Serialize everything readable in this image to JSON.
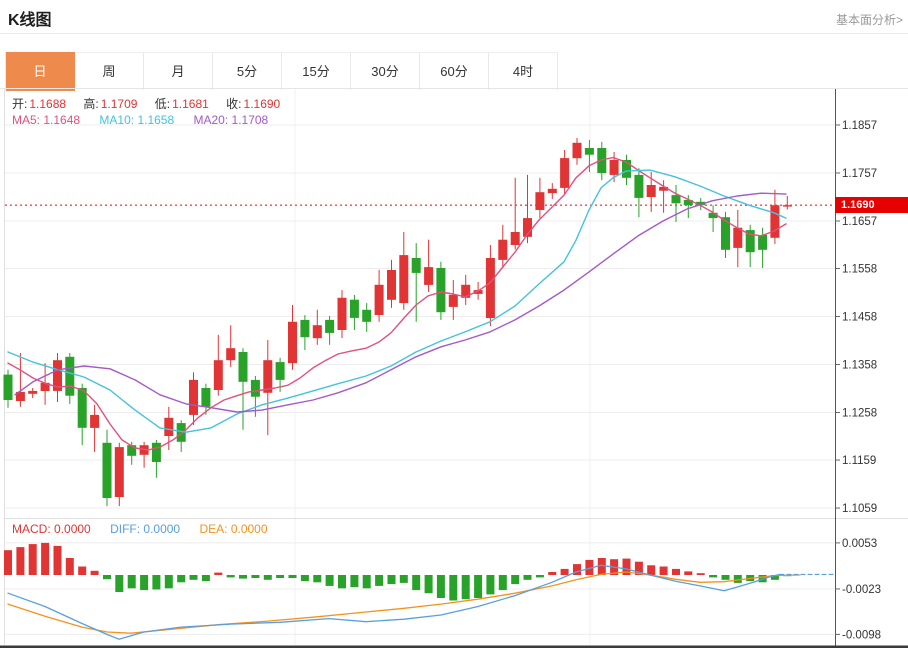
{
  "header": {
    "title": "K线图",
    "link": "基本面分析>"
  },
  "tabs": [
    "日",
    "周",
    "月",
    "5分",
    "15分",
    "30分",
    "60分",
    "4时"
  ],
  "ohlc": [
    {
      "label": "开:",
      "value": "1.1688"
    },
    {
      "label": "高:",
      "value": "1.1709"
    },
    {
      "label": "低:",
      "value": "1.1681"
    },
    {
      "label": "收:",
      "value": "1.1690"
    }
  ],
  "ma_legend": [
    {
      "label": "MA5:",
      "value": "1.1648"
    },
    {
      "label": "MA10:",
      "value": "1.1658"
    },
    {
      "label": "MA20:",
      "value": "1.1708"
    }
  ],
  "macd_legend": [
    {
      "label": "MACD:",
      "value": "0.0000"
    },
    {
      "label": "DIFF:",
      "value": "0.0000"
    },
    {
      "label": "DEA:",
      "value": "0.0000"
    }
  ],
  "price_tag": "1.1690",
  "chart_data": {
    "type": "candlestick",
    "title": "K线图",
    "up_color": "#e13434",
    "down_color": "#28a228",
    "price_line_color": "#f04848",
    "tag_color": "#e60000",
    "current_price": 1.169,
    "y_axis_labels": [
      "1.1857",
      "1.1757",
      "1.1657",
      "1.1558",
      "1.1458",
      "1.1358",
      "1.1258",
      "1.1159",
      "1.1059"
    ],
    "macd_axis_labels": [
      "0.0053",
      "-0.0023",
      "-0.0098"
    ],
    "candles": [
      [
        1.1337,
        1.1347,
        1.1268,
        1.1284
      ],
      [
        1.1282,
        1.1382,
        1.127,
        1.1301
      ],
      [
        1.1297,
        1.1309,
        1.1288,
        1.1303
      ],
      [
        1.1303,
        1.1361,
        1.1274,
        1.132
      ],
      [
        1.1303,
        1.1382,
        1.128,
        1.1367
      ],
      [
        1.1374,
        1.1382,
        1.1276,
        1.1293
      ],
      [
        1.1309,
        1.1318,
        1.119,
        1.1226
      ],
      [
        1.1226,
        1.1274,
        1.1176,
        1.1253
      ],
      [
        1.1195,
        1.1222,
        1.1063,
        1.108
      ],
      [
        1.1082,
        1.1195,
        1.1063,
        1.1186
      ],
      [
        1.119,
        1.1197,
        1.1149,
        1.1168
      ],
      [
        1.117,
        1.1197,
        1.1143,
        1.119
      ],
      [
        1.1195,
        1.1201,
        1.1122,
        1.1155
      ],
      [
        1.1209,
        1.127,
        1.118,
        1.1247
      ],
      [
        1.1236,
        1.1242,
        1.1176,
        1.1197
      ],
      [
        1.1253,
        1.1342,
        1.1232,
        1.1326
      ],
      [
        1.1309,
        1.1318,
        1.1253,
        1.127
      ],
      [
        1.1305,
        1.142,
        1.1293,
        1.1367
      ],
      [
        1.1367,
        1.144,
        1.1353,
        1.1392
      ],
      [
        1.1384,
        1.1392,
        1.1222,
        1.1322
      ],
      [
        1.1326,
        1.1334,
        1.1249,
        1.1291
      ],
      [
        1.1299,
        1.1409,
        1.1211,
        1.1367
      ],
      [
        1.1363,
        1.1372,
        1.1301,
        1.1326
      ],
      [
        1.1361,
        1.1482,
        1.1347,
        1.1447
      ],
      [
        1.1451,
        1.1461,
        1.1388,
        1.1415
      ],
      [
        1.1413,
        1.1472,
        1.1399,
        1.144
      ],
      [
        1.1451,
        1.1459,
        1.1399,
        1.1424
      ],
      [
        1.143,
        1.1513,
        1.1413,
        1.1497
      ],
      [
        1.1493,
        1.1503,
        1.143,
        1.1455
      ],
      [
        1.1472,
        1.1486,
        1.1426,
        1.1447
      ],
      [
        1.1461,
        1.1555,
        1.1447,
        1.1524
      ],
      [
        1.1493,
        1.1576,
        1.1476,
        1.1555
      ],
      [
        1.1486,
        1.1634,
        1.1472,
        1.1586
      ],
      [
        1.158,
        1.1611,
        1.1447,
        1.1549
      ],
      [
        1.1524,
        1.1618,
        1.1509,
        1.1561
      ],
      [
        1.1559,
        1.1572,
        1.1451,
        1.1467
      ],
      [
        1.1478,
        1.1534,
        1.1451,
        1.1503
      ],
      [
        1.1497,
        1.1545,
        1.1482,
        1.1524
      ],
      [
        1.1505,
        1.153,
        1.1493,
        1.1513
      ],
      [
        1.1455,
        1.1607,
        1.1438,
        1.158
      ],
      [
        1.1576,
        1.1649,
        1.1559,
        1.1618
      ],
      [
        1.1607,
        1.1747,
        1.1598,
        1.1634
      ],
      [
        1.1624,
        1.1753,
        1.1611,
        1.1663
      ],
      [
        1.168,
        1.1747,
        1.1663,
        1.1717
      ],
      [
        1.1715,
        1.1736,
        1.1703,
        1.1724
      ],
      [
        1.1726,
        1.1805,
        1.1711,
        1.1788
      ],
      [
        1.1788,
        1.183,
        1.1774,
        1.182
      ],
      [
        1.1809,
        1.1826,
        1.1759,
        1.1795
      ],
      [
        1.1809,
        1.1822,
        1.1742,
        1.1757
      ],
      [
        1.1753,
        1.1801,
        1.1738,
        1.1784
      ],
      [
        1.1784,
        1.1795,
        1.1732,
        1.1747
      ],
      [
        1.1753,
        1.1767,
        1.1665,
        1.1705
      ],
      [
        1.1707,
        1.1759,
        1.1676,
        1.1732
      ],
      [
        1.172,
        1.1742,
        1.1674,
        1.1728
      ],
      [
        1.1711,
        1.1732,
        1.1655,
        1.1694
      ],
      [
        1.1701,
        1.1711,
        1.1663,
        1.169
      ],
      [
        1.1697,
        1.1705,
        1.168,
        1.169
      ],
      [
        1.1674,
        1.169,
        1.1634,
        1.1663
      ],
      [
        1.1665,
        1.1676,
        1.158,
        1.1597
      ],
      [
        1.1601,
        1.168,
        1.1561,
        1.1643
      ],
      [
        1.1638,
        1.1649,
        1.1561,
        1.1592
      ],
      [
        1.1628,
        1.1643,
        1.1559,
        1.1597
      ],
      [
        1.1622,
        1.1722,
        1.1609,
        1.169
      ],
      [
        1.1688,
        1.1709,
        1.1681,
        1.169
      ]
    ],
    "ma_lines": [
      {
        "name": "MA5",
        "color": "#e0517e",
        "points": [
          [
            8,
            1.1361
          ],
          [
            20,
            1.1347
          ],
          [
            33,
            1.133
          ],
          [
            46,
            1.1318
          ],
          [
            58,
            1.1311
          ],
          [
            71,
            1.1313
          ],
          [
            84,
            1.1303
          ],
          [
            97,
            1.1276
          ],
          [
            110,
            1.1234
          ],
          [
            122,
            1.1201
          ],
          [
            135,
            1.1184
          ],
          [
            148,
            1.118
          ],
          [
            160,
            1.1186
          ],
          [
            173,
            1.1201
          ],
          [
            186,
            1.1222
          ],
          [
            198,
            1.1247
          ],
          [
            211,
            1.1268
          ],
          [
            224,
            1.1284
          ],
          [
            237,
            1.1293
          ],
          [
            249,
            1.1301
          ],
          [
            262,
            1.1305
          ],
          [
            275,
            1.1309
          ],
          [
            288,
            1.1315
          ],
          [
            300,
            1.133
          ],
          [
            313,
            1.1351
          ],
          [
            326,
            1.1367
          ],
          [
            338,
            1.138
          ],
          [
            351,
            1.1386
          ],
          [
            366,
            1.1392
          ],
          [
            379,
            1.1405
          ],
          [
            391,
            1.1424
          ],
          [
            404,
            1.1455
          ],
          [
            416,
            1.1482
          ],
          [
            428,
            1.1501
          ],
          [
            441,
            1.1509
          ],
          [
            453,
            1.1505
          ],
          [
            465,
            1.1499
          ],
          [
            478,
            1.1511
          ],
          [
            490,
            1.1528
          ],
          [
            502,
            1.1559
          ],
          [
            515,
            1.1592
          ],
          [
            527,
            1.1628
          ],
          [
            539,
            1.1659
          ],
          [
            552,
            1.1686
          ],
          [
            564,
            1.1711
          ],
          [
            576,
            1.1747
          ],
          [
            589,
            1.1772
          ],
          [
            601,
            1.1784
          ],
          [
            613,
            1.1789
          ],
          [
            626,
            1.178
          ],
          [
            638,
            1.1763
          ],
          [
            650,
            1.1747
          ],
          [
            663,
            1.173
          ],
          [
            675,
            1.1715
          ],
          [
            687,
            1.1703
          ],
          [
            700,
            1.169
          ],
          [
            712,
            1.1676
          ],
          [
            724,
            1.1659
          ],
          [
            737,
            1.1643
          ],
          [
            749,
            1.163
          ],
          [
            761,
            1.1626
          ],
          [
            774,
            1.1636
          ],
          [
            786,
            1.1651
          ]
        ]
      },
      {
        "name": "MA10",
        "color": "#45c2dc",
        "points": [
          [
            8,
            1.1384
          ],
          [
            33,
            1.1363
          ],
          [
            58,
            1.1347
          ],
          [
            84,
            1.1332
          ],
          [
            110,
            1.1305
          ],
          [
            135,
            1.1263
          ],
          [
            160,
            1.1226
          ],
          [
            186,
            1.1217
          ],
          [
            211,
            1.1226
          ],
          [
            237,
            1.1255
          ],
          [
            262,
            1.1274
          ],
          [
            288,
            1.1288
          ],
          [
            313,
            1.1303
          ],
          [
            338,
            1.1318
          ],
          [
            366,
            1.1334
          ],
          [
            391,
            1.1355
          ],
          [
            416,
            1.1384
          ],
          [
            441,
            1.1407
          ],
          [
            465,
            1.1426
          ],
          [
            490,
            1.1447
          ],
          [
            515,
            1.148
          ],
          [
            539,
            1.1526
          ],
          [
            564,
            1.1572
          ],
          [
            576,
            1.1617
          ],
          [
            589,
            1.168
          ],
          [
            601,
            1.1726
          ],
          [
            613,
            1.1747
          ],
          [
            626,
            1.1761
          ],
          [
            650,
            1.1763
          ],
          [
            675,
            1.1749
          ],
          [
            700,
            1.173
          ],
          [
            724,
            1.1709
          ],
          [
            749,
            1.169
          ],
          [
            774,
            1.1674
          ],
          [
            786,
            1.1663
          ]
        ]
      },
      {
        "name": "MA20",
        "color": "#a35ac8",
        "points": [
          [
            15,
            1.1295
          ],
          [
            33,
            1.1322
          ],
          [
            58,
            1.1347
          ],
          [
            84,
            1.1355
          ],
          [
            110,
            1.1349
          ],
          [
            135,
            1.1326
          ],
          [
            160,
            1.1295
          ],
          [
            186,
            1.1276
          ],
          [
            211,
            1.1268
          ],
          [
            237,
            1.1259
          ],
          [
            262,
            1.1263
          ],
          [
            288,
            1.1274
          ],
          [
            313,
            1.1284
          ],
          [
            338,
            1.1299
          ],
          [
            366,
            1.132
          ],
          [
            391,
            1.1347
          ],
          [
            416,
            1.1374
          ],
          [
            441,
            1.1395
          ],
          [
            465,
            1.1409
          ],
          [
            490,
            1.1426
          ],
          [
            515,
            1.1451
          ],
          [
            539,
            1.148
          ],
          [
            564,
            1.1513
          ],
          [
            589,
            1.1551
          ],
          [
            613,
            1.1588
          ],
          [
            638,
            1.1626
          ],
          [
            663,
            1.1657
          ],
          [
            687,
            1.1682
          ],
          [
            712,
            1.1699
          ],
          [
            737,
            1.1709
          ],
          [
            761,
            1.1715
          ],
          [
            786,
            1.1713
          ]
        ]
      }
    ],
    "macd": {
      "histogram": [
        0.0041,
        0.0046,
        0.0051,
        0.0053,
        0.0048,
        0.0028,
        0.0014,
        0.0007,
        -0.0007,
        -0.0028,
        -0.0022,
        -0.0025,
        -0.0024,
        -0.0022,
        -0.0012,
        -0.0008,
        -0.001,
        0.0004,
        -0.0004,
        -0.0006,
        -0.0005,
        -0.0008,
        -0.0005,
        -0.0005,
        -0.001,
        -0.0012,
        -0.0018,
        -0.0022,
        -0.002,
        -0.0022,
        -0.0018,
        -0.0015,
        -0.0013,
        -0.0025,
        -0.003,
        -0.0038,
        -0.0042,
        -0.004,
        -0.0038,
        -0.0032,
        -0.0025,
        -0.0015,
        -0.0008,
        -0.0004,
        0.0005,
        0.001,
        0.0018,
        0.0025,
        0.0028,
        0.0026,
        0.0027,
        0.0022,
        0.0016,
        0.0014,
        0.001,
        0.0006,
        0.0003,
        -0.0004,
        -0.0008,
        -0.0013,
        -0.001,
        -0.0012,
        -0.0008,
        0.0
      ],
      "diff": {
        "name": "DIFF",
        "color": "#58a0dc",
        "points": [
          [
            8,
            -0.003
          ],
          [
            45,
            -0.0052
          ],
          [
            82,
            -0.008
          ],
          [
            107,
            -0.0098
          ],
          [
            119,
            -0.0106
          ],
          [
            144,
            -0.0094
          ],
          [
            181,
            -0.0086
          ],
          [
            231,
            -0.0081
          ],
          [
            280,
            -0.0078
          ],
          [
            329,
            -0.0072
          ],
          [
            366,
            -0.0077
          ],
          [
            404,
            -0.0073
          ],
          [
            441,
            -0.0066
          ],
          [
            478,
            -0.0052
          ],
          [
            515,
            -0.0034
          ],
          [
            552,
            -0.0012
          ],
          [
            576,
            0.0005
          ],
          [
            601,
            0.0016
          ],
          [
            626,
            0.001
          ],
          [
            650,
            0.0
          ],
          [
            675,
            -0.001
          ],
          [
            700,
            -0.0018
          ],
          [
            724,
            -0.0026
          ],
          [
            737,
            -0.002
          ],
          [
            755,
            -0.0011
          ],
          [
            770,
            -0.0003
          ],
          [
            780,
            0.0001
          ]
        ]
      },
      "dea": {
        "name": "DEA",
        "color": "#f5921e",
        "points": [
          [
            8,
            -0.0048
          ],
          [
            45,
            -0.0068
          ],
          [
            82,
            -0.0086
          ],
          [
            107,
            -0.0094
          ],
          [
            131,
            -0.0096
          ],
          [
            169,
            -0.009
          ],
          [
            218,
            -0.0082
          ],
          [
            268,
            -0.0076
          ],
          [
            317,
            -0.0069
          ],
          [
            366,
            -0.0061
          ],
          [
            404,
            -0.0055
          ],
          [
            441,
            -0.0048
          ],
          [
            478,
            -0.004
          ],
          [
            515,
            -0.003
          ],
          [
            552,
            -0.0018
          ],
          [
            576,
            -0.0008
          ],
          [
            601,
            0.0001
          ],
          [
            626,
            0.0005
          ],
          [
            650,
            0.0
          ],
          [
            675,
            -0.0007
          ],
          [
            700,
            -0.0012
          ],
          [
            724,
            -0.0011
          ],
          [
            749,
            -0.0006
          ],
          [
            774,
            -0.0001
          ],
          [
            800,
            0.0
          ]
        ]
      },
      "diff_dashed_tail": [
        [
          780,
          0.0001
        ],
        [
          833,
          0.0001
        ]
      ]
    }
  }
}
